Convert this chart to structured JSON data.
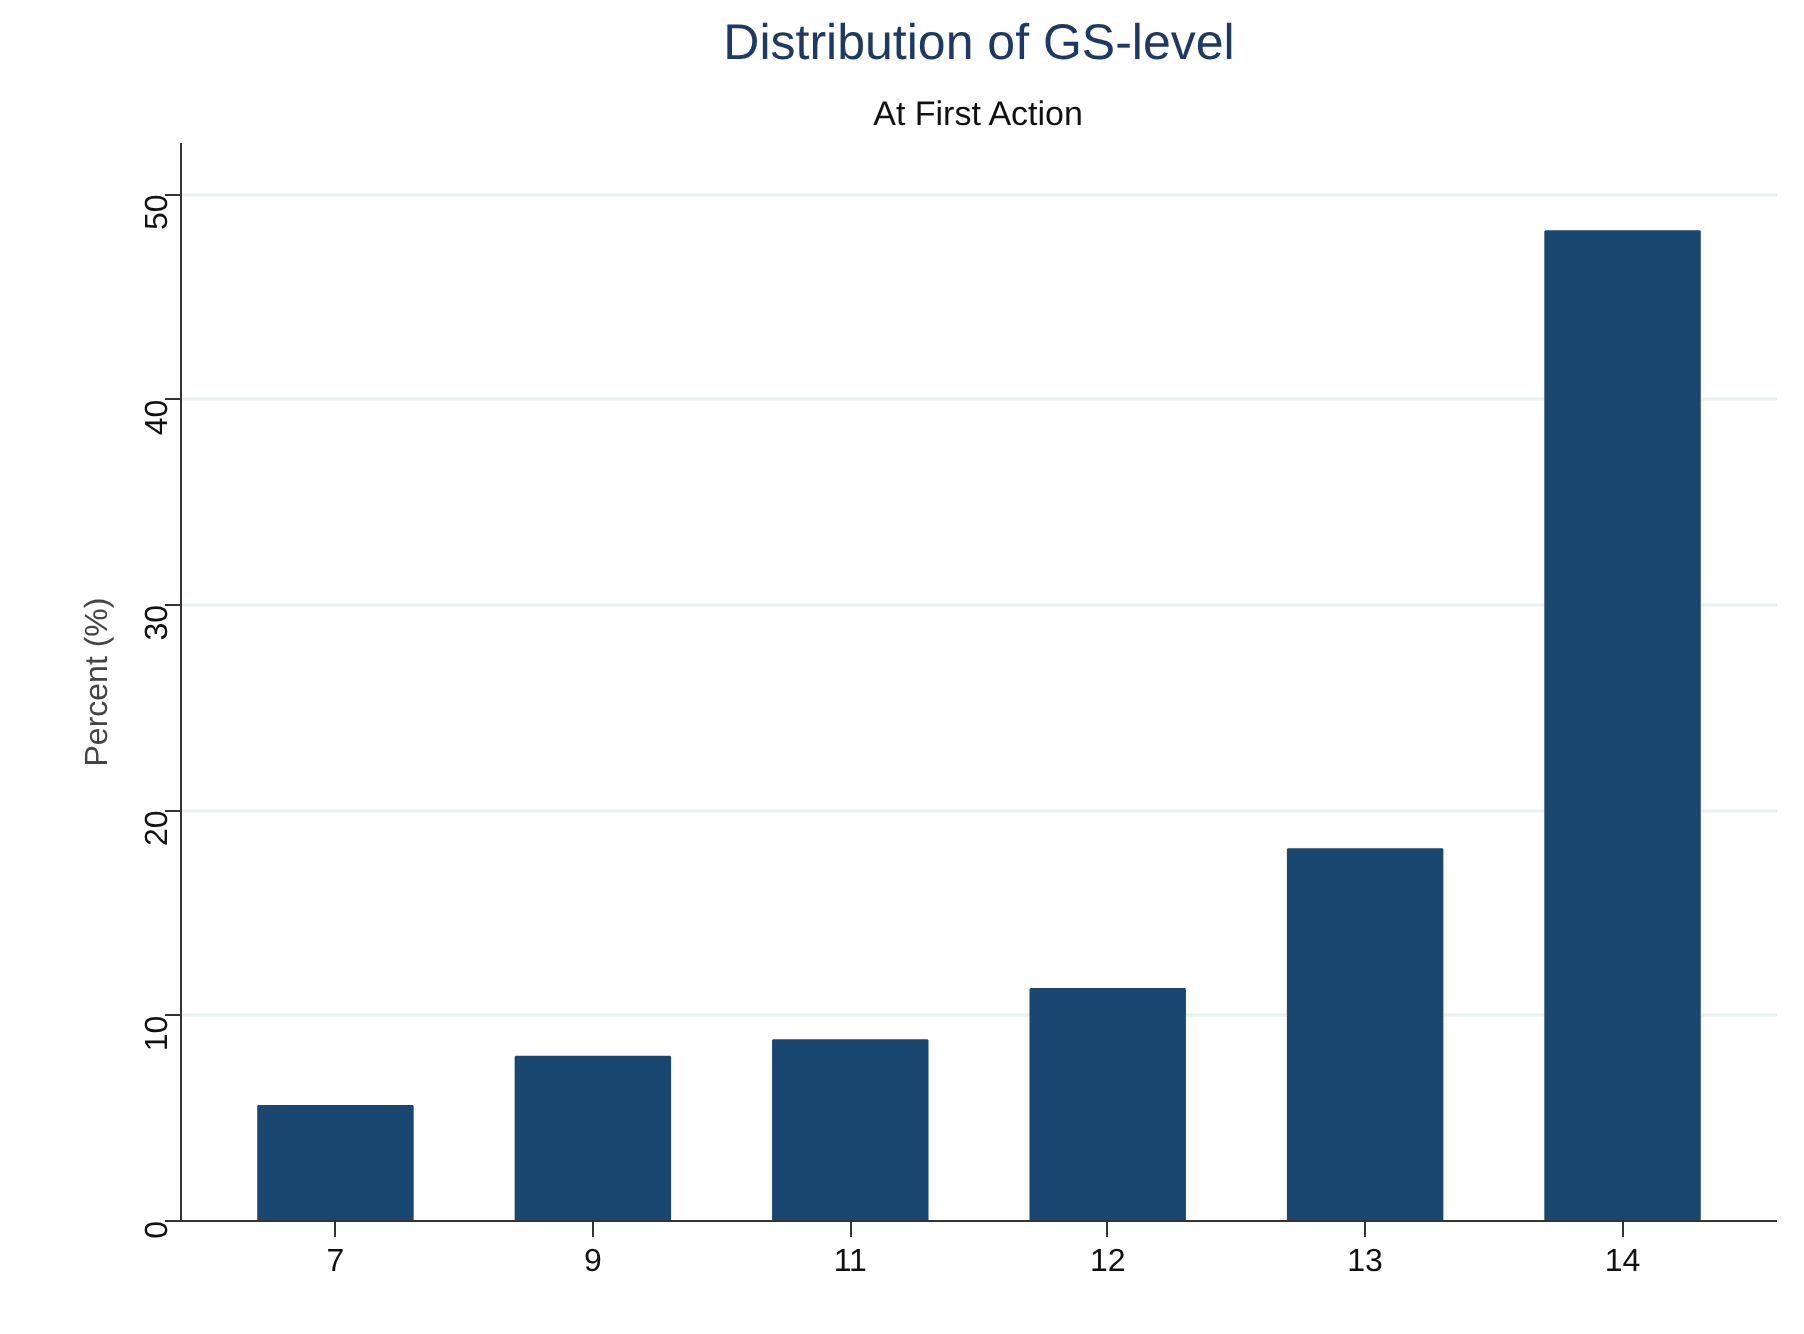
{
  "chart_data": {
    "type": "bar",
    "title": "Distribution of GS-level",
    "subtitle": "At First Action",
    "ylabel": "Percent (%)",
    "categories": [
      "7",
      "9",
      "11",
      "12",
      "13",
      "14"
    ],
    "values": [
      5.6,
      8.0,
      8.8,
      11.3,
      18.1,
      48.2
    ],
    "color": "#1a476f",
    "ylim": [
      0,
      52.5
    ],
    "yticks": [
      0,
      10,
      20,
      30,
      40,
      50
    ],
    "grid": "y"
  }
}
